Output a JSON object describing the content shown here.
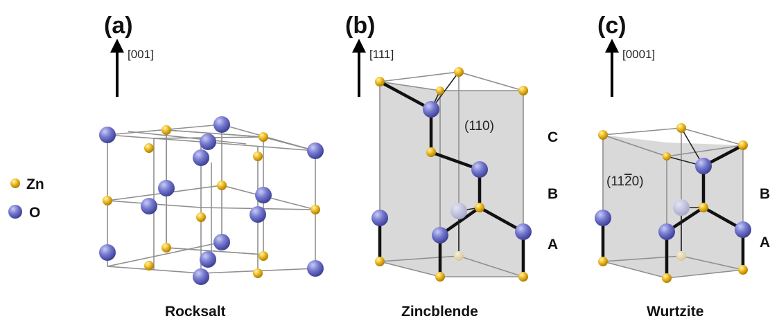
{
  "legend": {
    "items": [
      {
        "label": "Zn",
        "color": "#e6b012"
      },
      {
        "label": "O",
        "color": "#6d70c9"
      }
    ]
  },
  "panels": [
    {
      "tag": "(a)",
      "direction": "[001]",
      "structure": "Rocksalt"
    },
    {
      "tag": "(b)",
      "direction": "[111]",
      "structure": "Zincblende",
      "plane": "(110)",
      "stacking": [
        "C",
        "B",
        "A"
      ]
    },
    {
      "tag": "(c)",
      "direction": "[0001]",
      "structure": "Wurtzite",
      "plane_prefix": "(11",
      "plane_bar_digit": "2",
      "plane_suffix": "0)",
      "stacking": [
        "B",
        "A"
      ]
    }
  ],
  "colors": {
    "zn": "#e6b012",
    "o": "#6d70c9",
    "plane_fill": "#d5d5d5"
  }
}
